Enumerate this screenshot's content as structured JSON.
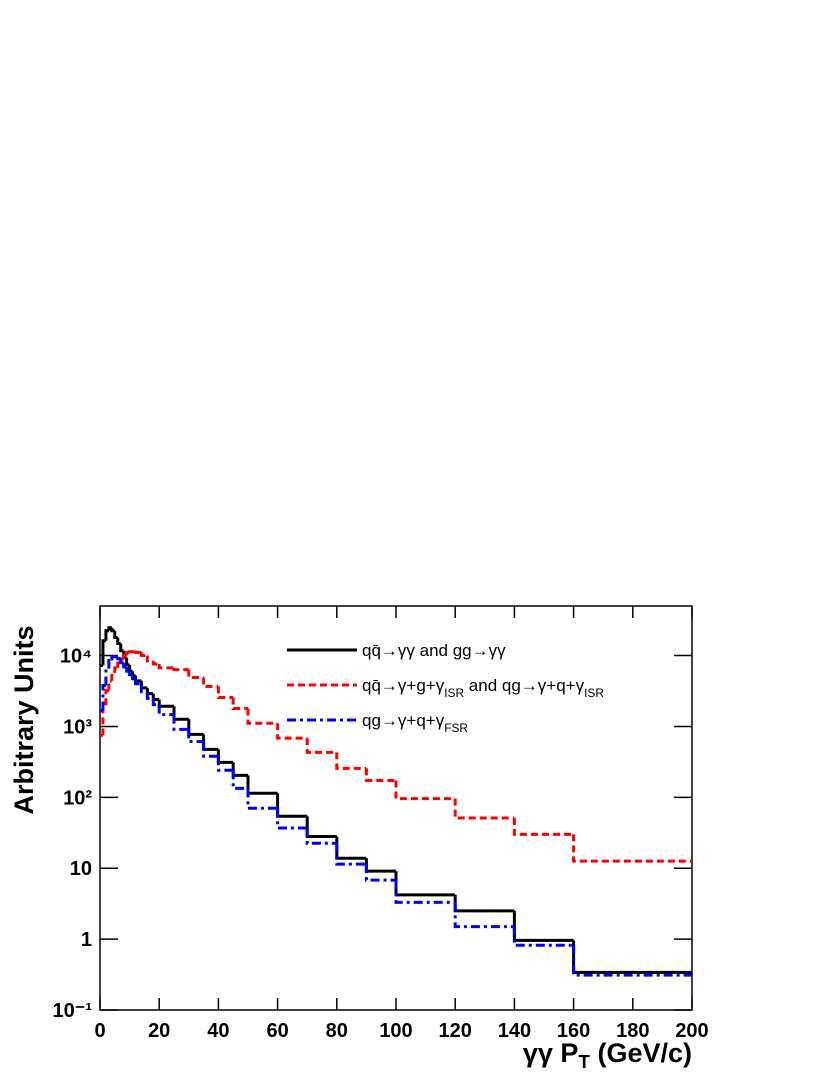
{
  "chart_data": {
    "type": "histogram",
    "x_label": "γγ PT (GeV/c)",
    "y_label": "Arbitrary Units",
    "bins": [
      0,
      1,
      2,
      3,
      4,
      5,
      6,
      7,
      8,
      9,
      10,
      11,
      12,
      14,
      16,
      18,
      20,
      25,
      30,
      35,
      40,
      45,
      50,
      60,
      70,
      80,
      90,
      100,
      120,
      140,
      160,
      200
    ],
    "series": [
      {
        "name": "qq̄→γγ and gg→γγ",
        "color": "#000000",
        "dash": "solid",
        "values": [
          7240,
          16200,
          22400,
          24700,
          22400,
          18000,
          14800,
          11700,
          9300,
          7400,
          6000,
          5200,
          4400,
          3500,
          2900,
          2400,
          1928,
          1262,
          773,
          474,
          311,
          204,
          114,
          54,
          28,
          13.8,
          9.1,
          4.2,
          2.5,
          0.96,
          0.34
        ]
      },
      {
        "name": "qq̄→γ+g+γISR and qg→γ+q+γISR",
        "color": "#ff0000",
        "dash": "dashed",
        "values": [
          749,
          1990,
          3200,
          4400,
          5700,
          6700,
          7890,
          8960,
          10000,
          11100,
          11300,
          11300,
          11100,
          10000,
          8400,
          7600,
          6700,
          6330,
          4910,
          3660,
          2560,
          1790,
          1110,
          683,
          431,
          256,
          173,
          96,
          51,
          30,
          12.6
        ]
      },
      {
        "name": "qg→γ+q+γFSR",
        "color": "#0000ff",
        "dash": "dashdot",
        "values": [
          1680,
          3780,
          6550,
          8500,
          9600,
          9600,
          9000,
          7900,
          6900,
          6000,
          5400,
          4700,
          4000,
          3100,
          2490,
          2030,
          1470,
          910,
          612,
          380,
          241,
          134,
          70,
          37,
          22.5,
          11.4,
          6.8,
          3.3,
          1.5,
          0.82,
          0.31
        ]
      }
    ],
    "xlim": [
      0,
      200
    ],
    "xticks": [
      0,
      20,
      40,
      60,
      80,
      100,
      120,
      140,
      160,
      180,
      200
    ],
    "ylim": [
      0.1,
      50000
    ],
    "log_y": true,
    "yticks": [
      {
        "value": 0.1,
        "label": "10⁻¹"
      },
      1,
      10,
      {
        "value": 100,
        "label": "10²"
      },
      {
        "value": 1000,
        "label": "10³"
      },
      {
        "value": 10000,
        "label": "10⁴"
      }
    ],
    "legend": "top-right"
  }
}
